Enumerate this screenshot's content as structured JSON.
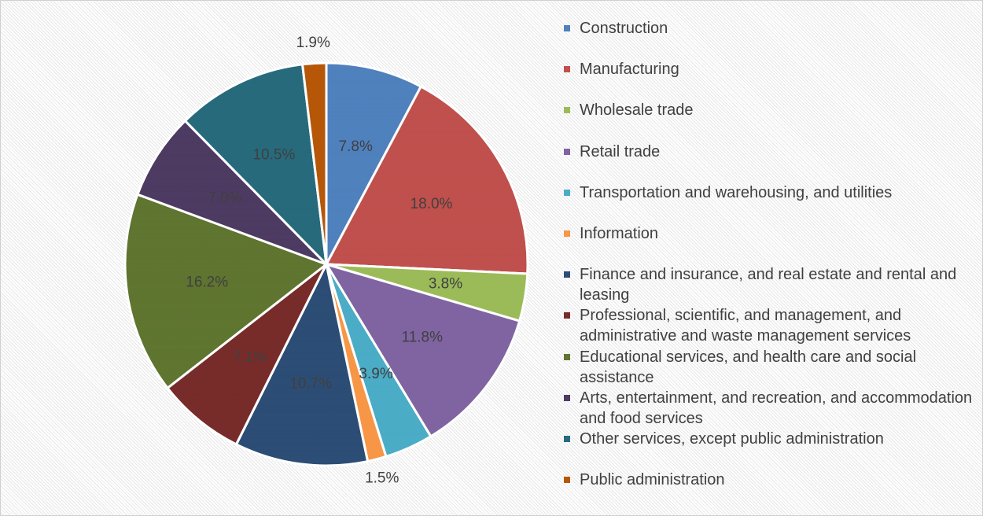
{
  "chart_data": {
    "type": "pie",
    "categories": [
      "Construction",
      "Manufacturing",
      "Wholesale trade",
      "Retail trade",
      "Transportation and warehousing, and utilities",
      "Information",
      "Finance and insurance, and real estate and rental and leasing",
      "Professional, scientific, and management, and administrative and waste management services",
      "Educational services, and health care and social assistance",
      "Arts, entertainment, and recreation, and accommodation and food services",
      "Other services, except public administration",
      "Public administration"
    ],
    "values": [
      7.8,
      18.0,
      3.8,
      11.8,
      3.9,
      1.5,
      10.7,
      7.1,
      16.2,
      7.0,
      10.5,
      1.9
    ],
    "value_labels": [
      "7.8%",
      "18.0%",
      "3.8%",
      "11.8%",
      "3.9%",
      "1.5%",
      "10.7%",
      "7.1%",
      "16.2%",
      "7.0%",
      "10.5%",
      "1.9%"
    ],
    "colors": [
      "#4f81bd",
      "#c0504d",
      "#9bbb59",
      "#8064a2",
      "#4bacc6",
      "#f79646",
      "#2c4d75",
      "#772c2a",
      "#5f7530",
      "#4d3b62",
      "#276a7c",
      "#b65708"
    ],
    "legend": "right"
  }
}
